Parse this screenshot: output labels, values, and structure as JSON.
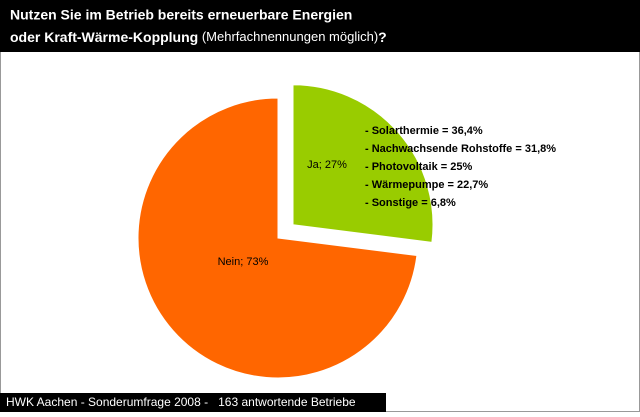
{
  "chart_data": {
    "type": "pie",
    "title": [
      "Nutzen Sie im Betrieb bereits erneuerbare Energien",
      "oder Kraft-Wärme-Kopplung",
      " (Mehrfachnennungen möglich)",
      "?"
    ],
    "categories": [
      "Ja",
      "Nein"
    ],
    "values": [
      27,
      73
    ],
    "value_labels": [
      "Ja; 27%",
      "Nein; 73%"
    ],
    "colors": [
      "#99cc00",
      "#ff6600"
    ],
    "explode": [
      true,
      false
    ],
    "annotation": [
      "- Solarthermie = 36,4%",
      "- Nachwachsende Rohstoffe = 31,8%",
      "- Photovoltaik = 25%",
      "- Wärmepumpe = 22,7%",
      "- Sonstige = 6,8%"
    ],
    "footer": "HWK Aachen - Sonderumfrage 2008 -   163 antwortende Betriebe"
  }
}
